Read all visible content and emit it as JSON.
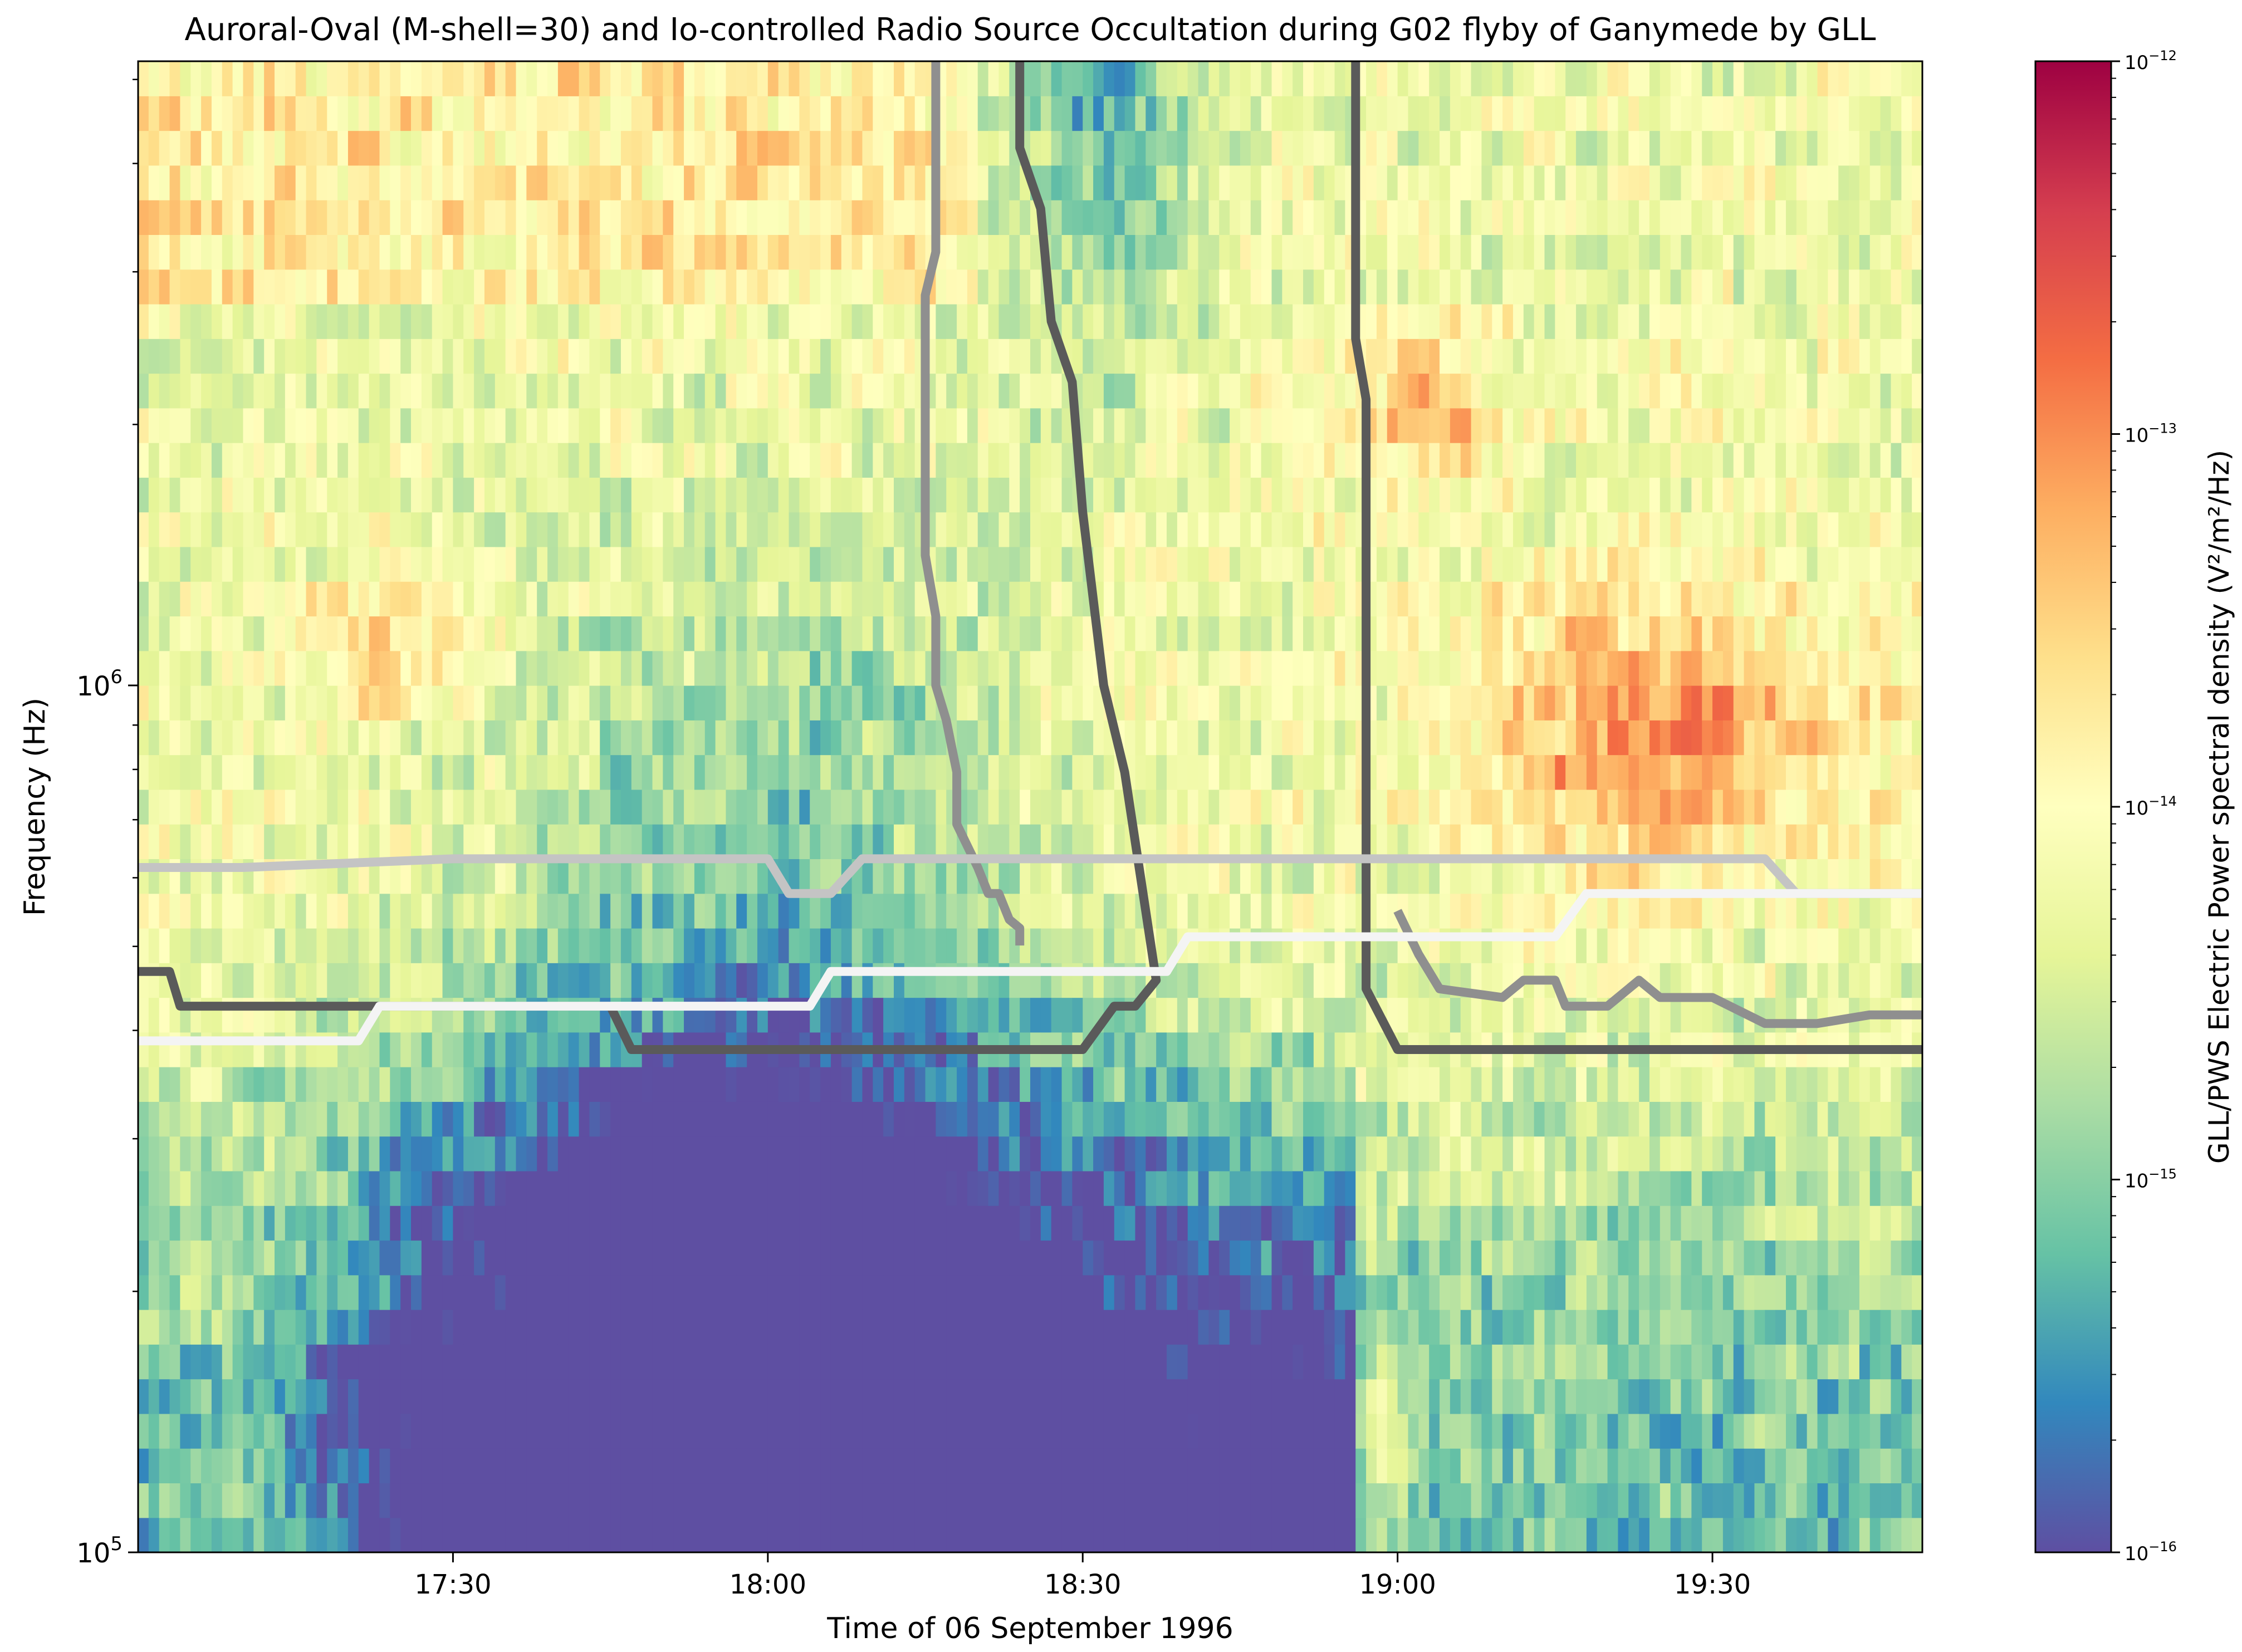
{
  "chart_data": {
    "type": "heatmap",
    "title": "Auroral-Oval (M-shell=30) and Io-controlled Radio Source Occultation during G02 flyby of Ganymede by GLL",
    "xlabel": "Time of 06 September 1996",
    "ylabel": "Frequency (Hz)",
    "x_range_minutes_after_midnight": [
      1020,
      1190
    ],
    "x_ticks": [
      {
        "label": "17:30",
        "minute": 1050
      },
      {
        "label": "18:00",
        "minute": 1080
      },
      {
        "label": "18:30",
        "minute": 1110
      },
      {
        "label": "19:00",
        "minute": 1140
      },
      {
        "label": "19:30",
        "minute": 1170
      }
    ],
    "y_scale": "log",
    "ylim_log10": [
      5.0,
      6.72
    ],
    "y_ticks": [
      {
        "label_base": "10",
        "label_exp": "5",
        "log10": 5
      },
      {
        "label_base": "10",
        "label_exp": "6",
        "log10": 6
      }
    ],
    "colorbar": {
      "label": "GLL/PWS Electric Power spectral density (V²/m²/Hz)",
      "cmap": "Spectral_r",
      "log10_range": [
        -16,
        -12
      ],
      "ticks": [
        {
          "label_base": "10",
          "label_exp": "−16",
          "log10": -16
        },
        {
          "label_base": "10",
          "label_exp": "−15",
          "log10": -15
        },
        {
          "label_base": "10",
          "label_exp": "−14",
          "log10": -14
        },
        {
          "label_base": "10",
          "label_exp": "−13",
          "log10": -13
        },
        {
          "label_base": "10",
          "label_exp": "−12",
          "log10": -12
        }
      ]
    },
    "colors": {
      "cmap_stops": [
        "#5e4fa2",
        "#3288bd",
        "#66c2a5",
        "#abdda4",
        "#e6f598",
        "#ffffbf",
        "#fee08b",
        "#fdae61",
        "#f46d43",
        "#d53e4f",
        "#9e0142"
      ],
      "dark_line": "#5a5a5a",
      "mid_line": "#8f8f8f",
      "light_line": "#c4c4c4",
      "white_line": "#f4f4f4"
    },
    "overlay_lines": [
      {
        "name": "northern auroral-oval occultation boundary",
        "color_key": "dark_line",
        "points": [
          [
            1020,
            5.67
          ],
          [
            1023,
            5.67
          ],
          [
            1024,
            5.63
          ],
          [
            1040,
            5.63
          ],
          [
            1065,
            5.63
          ],
          [
            1067,
            5.58
          ],
          [
            1110,
            5.58
          ],
          [
            1113,
            5.63
          ],
          [
            1115,
            5.63
          ],
          [
            1117,
            5.66
          ],
          [
            1114,
            5.9
          ],
          [
            1112,
            6.0
          ],
          [
            1110,
            6.2
          ],
          [
            1109,
            6.35
          ],
          [
            1107,
            6.42
          ],
          [
            1106,
            6.55
          ],
          [
            1104,
            6.62
          ],
          [
            1104,
            6.72
          ]
        ]
      },
      {
        "name": "boundary after 19:00",
        "color_key": "dark_line",
        "points": [
          [
            1136,
            6.72
          ],
          [
            1136,
            6.4
          ],
          [
            1137,
            6.33
          ],
          [
            1137,
            5.9
          ],
          [
            1137,
            5.75
          ],
          [
            1137,
            5.65
          ],
          [
            1140,
            5.58
          ],
          [
            1190,
            5.58
          ]
        ]
      },
      {
        "name": "southern auroral-oval boundary",
        "color_key": "mid_line",
        "points": [
          [
            1096,
            6.72
          ],
          [
            1096,
            6.5
          ],
          [
            1095,
            6.45
          ],
          [
            1095,
            6.15
          ],
          [
            1096,
            6.08
          ],
          [
            1096,
            6.0
          ],
          [
            1097,
            5.96
          ],
          [
            1098,
            5.9
          ],
          [
            1098,
            5.84
          ],
          [
            1100,
            5.79
          ],
          [
            1101,
            5.76
          ],
          [
            1102,
            5.76
          ],
          [
            1103,
            5.73
          ],
          [
            1104,
            5.72
          ],
          [
            1104,
            5.7
          ]
        ]
      },
      {
        "name": "southern boundary after 19:00",
        "color_key": "mid_line",
        "points": [
          [
            1140,
            5.74
          ],
          [
            1142,
            5.69
          ],
          [
            1144,
            5.65
          ],
          [
            1150,
            5.64
          ],
          [
            1152,
            5.66
          ],
          [
            1155,
            5.66
          ],
          [
            1156,
            5.63
          ],
          [
            1160,
            5.63
          ],
          [
            1163,
            5.66
          ],
          [
            1165,
            5.64
          ],
          [
            1170,
            5.64
          ],
          [
            1175,
            5.61
          ],
          [
            1180,
            5.61
          ],
          [
            1185,
            5.62
          ],
          [
            1190,
            5.62
          ]
        ]
      },
      {
        "name": "Io-controlled source boundary",
        "color_key": "light_line",
        "points": [
          [
            1020,
            5.79
          ],
          [
            1030,
            5.79
          ],
          [
            1050,
            5.8
          ],
          [
            1060,
            5.8
          ],
          [
            1080,
            5.8
          ],
          [
            1082,
            5.76
          ],
          [
            1086,
            5.76
          ],
          [
            1089,
            5.8
          ],
          [
            1110,
            5.8
          ],
          [
            1130,
            5.8
          ],
          [
            1170,
            5.8
          ],
          [
            1175,
            5.8
          ],
          [
            1178,
            5.76
          ],
          [
            1190,
            5.76
          ]
        ]
      },
      {
        "name": "Io boundary (white)",
        "color_key": "white_line",
        "points": [
          [
            1020,
            5.59
          ],
          [
            1041,
            5.59
          ],
          [
            1043,
            5.63
          ],
          [
            1060,
            5.63
          ],
          [
            1070,
            5.63
          ],
          [
            1084,
            5.63
          ],
          [
            1086,
            5.67
          ],
          [
            1102,
            5.67
          ],
          [
            1114,
            5.67
          ],
          [
            1118,
            5.67
          ],
          [
            1120,
            5.71
          ],
          [
            1131,
            5.71
          ],
          [
            1140,
            5.71
          ],
          [
            1155,
            5.71
          ],
          [
            1158,
            5.76
          ],
          [
            1175,
            5.76
          ],
          [
            1190,
            5.76
          ]
        ]
      }
    ]
  }
}
